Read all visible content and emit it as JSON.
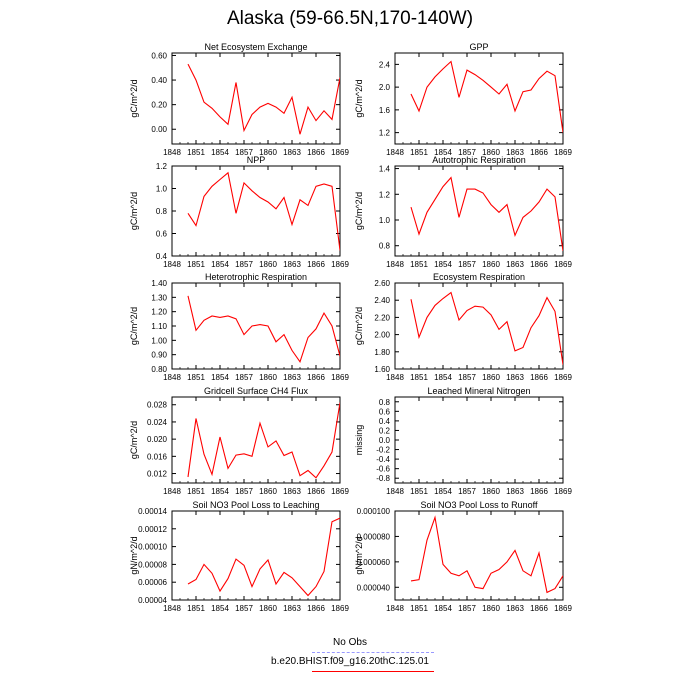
{
  "page": {
    "title": "Alaska (59-66.5N,170-140W)"
  },
  "legend": [
    {
      "label": "No Obs",
      "color": "#9999ff",
      "dashed": true
    },
    {
      "label": "b.e20.BHIST.f09_g16.20thC.125.01",
      "color": "#ff0000",
      "dashed": false
    }
  ],
  "colors": {
    "series": "#ff0000",
    "axis": "#000000"
  },
  "chart_data": [
    {
      "type": "line",
      "title": "Net Ecosystem Exchange",
      "ylabel": "gC/m^2/d",
      "xlim": [
        1848,
        1869
      ],
      "ylim": [
        -0.12,
        0.62
      ],
      "yticks": [
        "0.00",
        "0.20",
        "0.40",
        "0.60"
      ],
      "ytick_values": [
        0,
        0.2,
        0.4,
        0.6
      ],
      "xticks": [
        "1848",
        "1851",
        "1854",
        "1857",
        "1860",
        "1863",
        "1866",
        "1869"
      ],
      "x": [
        1850,
        1851,
        1852,
        1853,
        1854,
        1855,
        1856,
        1857,
        1858,
        1859,
        1860,
        1861,
        1862,
        1863,
        1864,
        1865,
        1866,
        1867,
        1868,
        1869
      ],
      "series": [
        {
          "values": [
            0.53,
            0.4,
            0.22,
            0.17,
            0.1,
            0.04,
            0.38,
            -0.01,
            0.12,
            0.18,
            0.21,
            0.18,
            0.13,
            0.26,
            -0.04,
            0.18,
            0.07,
            0.15,
            0.08,
            0.42
          ]
        }
      ]
    },
    {
      "type": "line",
      "title": "GPP",
      "ylabel": "gC/m^2/d",
      "xlim": [
        1848,
        1869
      ],
      "ylim": [
        1.0,
        2.6
      ],
      "yticks": [
        "1.2",
        "1.6",
        "2.0",
        "2.4"
      ],
      "ytick_values": [
        1.2,
        1.6,
        2.0,
        2.4
      ],
      "xticks": [
        "1848",
        "1851",
        "1854",
        "1857",
        "1860",
        "1863",
        "1866",
        "1869"
      ],
      "x": [
        1850,
        1851,
        1852,
        1853,
        1854,
        1855,
        1856,
        1857,
        1858,
        1859,
        1860,
        1861,
        1862,
        1863,
        1864,
        1865,
        1866,
        1867,
        1868,
        1869
      ],
      "series": [
        {
          "values": [
            1.88,
            1.58,
            2.0,
            2.18,
            2.32,
            2.45,
            1.82,
            2.3,
            2.22,
            2.12,
            2.0,
            1.88,
            2.05,
            1.58,
            1.92,
            1.95,
            2.15,
            2.28,
            2.2,
            1.2
          ]
        }
      ]
    },
    {
      "type": "line",
      "title": "NPP",
      "ylabel": "gC/m^2/d",
      "xlim": [
        1848,
        1869
      ],
      "ylim": [
        0.4,
        1.2
      ],
      "yticks": [
        "0.4",
        "0.6",
        "0.8",
        "1.0",
        "1.2"
      ],
      "ytick_values": [
        0.4,
        0.6,
        0.8,
        1.0,
        1.2
      ],
      "xticks": [
        "1848",
        "1851",
        "1854",
        "1857",
        "1860",
        "1863",
        "1866",
        "1869"
      ],
      "x": [
        1850,
        1851,
        1852,
        1853,
        1854,
        1855,
        1856,
        1857,
        1858,
        1859,
        1860,
        1861,
        1862,
        1863,
        1864,
        1865,
        1866,
        1867,
        1868,
        1869
      ],
      "series": [
        {
          "values": [
            0.78,
            0.67,
            0.93,
            1.02,
            1.08,
            1.14,
            0.78,
            1.05,
            0.98,
            0.92,
            0.88,
            0.82,
            0.92,
            0.68,
            0.9,
            0.85,
            1.02,
            1.04,
            1.02,
            0.45
          ]
        }
      ]
    },
    {
      "type": "line",
      "title": "Autotrophic Respiration",
      "ylabel": "gC/m^2/d",
      "xlim": [
        1848,
        1869
      ],
      "ylim": [
        0.72,
        1.42
      ],
      "yticks": [
        "0.8",
        "1.0",
        "1.2",
        "1.4"
      ],
      "ytick_values": [
        0.8,
        1.0,
        1.2,
        1.4
      ],
      "xticks": [
        "1848",
        "1851",
        "1854",
        "1857",
        "1860",
        "1863",
        "1866",
        "1869"
      ],
      "x": [
        1850,
        1851,
        1852,
        1853,
        1854,
        1855,
        1856,
        1857,
        1858,
        1859,
        1860,
        1861,
        1862,
        1863,
        1864,
        1865,
        1866,
        1867,
        1868,
        1869
      ],
      "series": [
        {
          "values": [
            1.1,
            0.89,
            1.06,
            1.16,
            1.26,
            1.33,
            1.02,
            1.24,
            1.24,
            1.21,
            1.12,
            1.06,
            1.12,
            0.88,
            1.02,
            1.07,
            1.14,
            1.24,
            1.18,
            0.76
          ]
        }
      ]
    },
    {
      "type": "line",
      "title": "Heterotrophic Respiration",
      "ylabel": "gC/m^2/d",
      "xlim": [
        1848,
        1869
      ],
      "ylim": [
        0.8,
        1.4
      ],
      "yticks": [
        "0.80",
        "0.90",
        "1.00",
        "1.10",
        "1.20",
        "1.30",
        "1.40"
      ],
      "ytick_values": [
        0.8,
        0.9,
        1.0,
        1.1,
        1.2,
        1.3,
        1.4
      ],
      "xticks": [
        "1848",
        "1851",
        "1854",
        "1857",
        "1860",
        "1863",
        "1866",
        "1869"
      ],
      "x": [
        1850,
        1851,
        1852,
        1853,
        1854,
        1855,
        1856,
        1857,
        1858,
        1859,
        1860,
        1861,
        1862,
        1863,
        1864,
        1865,
        1866,
        1867,
        1868,
        1869
      ],
      "series": [
        {
          "values": [
            1.31,
            1.07,
            1.14,
            1.17,
            1.16,
            1.17,
            1.15,
            1.04,
            1.1,
            1.11,
            1.1,
            0.99,
            1.04,
            0.93,
            0.85,
            1.02,
            1.08,
            1.19,
            1.1,
            0.89
          ]
        }
      ]
    },
    {
      "type": "line",
      "title": "Ecosystem Respiration",
      "ylabel": "gC/m^2/d",
      "xlim": [
        1848,
        1869
      ],
      "ylim": [
        1.6,
        2.6
      ],
      "yticks": [
        "1.60",
        "1.80",
        "2.00",
        "2.20",
        "2.40",
        "2.60"
      ],
      "ytick_values": [
        1.6,
        1.8,
        2.0,
        2.2,
        2.4,
        2.6
      ],
      "xticks": [
        "1848",
        "1851",
        "1854",
        "1857",
        "1860",
        "1863",
        "1866",
        "1869"
      ],
      "x": [
        1850,
        1851,
        1852,
        1853,
        1854,
        1855,
        1856,
        1857,
        1858,
        1859,
        1860,
        1861,
        1862,
        1863,
        1864,
        1865,
        1866,
        1867,
        1868,
        1869
      ],
      "series": [
        {
          "values": [
            2.41,
            1.97,
            2.2,
            2.34,
            2.42,
            2.49,
            2.17,
            2.28,
            2.33,
            2.32,
            2.23,
            2.06,
            2.15,
            1.81,
            1.85,
            2.08,
            2.22,
            2.43,
            2.27,
            1.65
          ]
        }
      ]
    },
    {
      "type": "line",
      "title": "Gridcell Surface CH4 Flux",
      "ylabel": "gC/m^2/d",
      "xlim": [
        1848,
        1869
      ],
      "ylim": [
        0.0098,
        0.0298
      ],
      "yticks": [
        "0.012",
        "0.016",
        "0.020",
        "0.024",
        "0.028"
      ],
      "ytick_values": [
        0.012,
        0.016,
        0.02,
        0.024,
        0.028
      ],
      "xticks": [
        "1848",
        "1851",
        "1854",
        "1857",
        "1860",
        "1863",
        "1866",
        "1869"
      ],
      "x": [
        1850,
        1851,
        1852,
        1853,
        1854,
        1855,
        1856,
        1857,
        1858,
        1859,
        1860,
        1861,
        1862,
        1863,
        1864,
        1865,
        1866,
        1867,
        1868,
        1869
      ],
      "series": [
        {
          "values": [
            0.0112,
            0.0248,
            0.0165,
            0.0118,
            0.0205,
            0.0132,
            0.0163,
            0.0166,
            0.016,
            0.0237,
            0.0182,
            0.0196,
            0.0162,
            0.017,
            0.0115,
            0.0127,
            0.011,
            0.0138,
            0.017,
            0.0285
          ]
        }
      ]
    },
    {
      "type": "line",
      "title": "Leached Mineral Nitrogen",
      "ylabel": "missing",
      "xlim": [
        1848,
        1869
      ],
      "ylim": [
        -0.9,
        0.9
      ],
      "yticks": [
        "-0.8",
        "-0.4",
        "0.0",
        "0.4",
        "0.8"
      ],
      "ytick_values": [
        -0.8,
        -0.4,
        0.0,
        0.4,
        0.8
      ],
      "extra_yticks": [
        "-0.6",
        "-0.2",
        "0.2",
        "0.6"
      ],
      "extra_ytick_values": [
        -0.6,
        -0.2,
        0.2,
        0.6
      ],
      "xticks": [
        "1848",
        "1851",
        "1854",
        "1857",
        "1860",
        "1863",
        "1866",
        "1869"
      ],
      "x": [],
      "series": []
    },
    {
      "type": "line",
      "title": "Soil NO3 Pool Loss to Leaching",
      "ylabel": "gN/m^2/d",
      "xlim": [
        1848,
        1869
      ],
      "ylim": [
        4e-05,
        0.00014
      ],
      "yticks": [
        "0.00004",
        "0.00006",
        "0.00008",
        "0.00010",
        "0.00012",
        "0.00014"
      ],
      "ytick_values": [
        4e-05,
        6e-05,
        8e-05,
        0.0001,
        0.00012,
        0.00014
      ],
      "xticks": [
        "1848",
        "1851",
        "1854",
        "1857",
        "1860",
        "1863",
        "1866",
        "1869"
      ],
      "x": [
        1850,
        1851,
        1852,
        1853,
        1854,
        1855,
        1856,
        1857,
        1858,
        1859,
        1860,
        1861,
        1862,
        1863,
        1864,
        1865,
        1866,
        1867,
        1868,
        1869
      ],
      "series": [
        {
          "values": [
            5.8e-05,
            6.3e-05,
            8e-05,
            7e-05,
            5e-05,
            6.4e-05,
            8.6e-05,
            7.9e-05,
            5.5e-05,
            7.5e-05,
            8.5e-05,
            5.8e-05,
            7.1e-05,
            6.5e-05,
            5.5e-05,
            4.5e-05,
            5.5e-05,
            7.2e-05,
            0.000128,
            0.000132
          ]
        }
      ]
    },
    {
      "type": "line",
      "title": "Soil NO3 Pool Loss to Runoff",
      "ylabel": "gN/m^2/d",
      "xlim": [
        1848,
        1869
      ],
      "ylim": [
        3e-05,
        0.0001
      ],
      "yticks": [
        "0.000040",
        "0.000060",
        "0.000080",
        "0.000100"
      ],
      "ytick_values": [
        4e-05,
        6e-05,
        8e-05,
        0.0001
      ],
      "xticks": [
        "1848",
        "1851",
        "1854",
        "1857",
        "1860",
        "1863",
        "1866",
        "1869"
      ],
      "x": [
        1850,
        1851,
        1852,
        1853,
        1854,
        1855,
        1856,
        1857,
        1858,
        1859,
        1860,
        1861,
        1862,
        1863,
        1864,
        1865,
        1866,
        1867,
        1868,
        1869
      ],
      "series": [
        {
          "values": [
            4.5e-05,
            4.6e-05,
            7.7e-05,
            9.5e-05,
            5.8e-05,
            5.1e-05,
            4.9e-05,
            5.3e-05,
            4e-05,
            3.9e-05,
            5.1e-05,
            5.4e-05,
            6e-05,
            6.9e-05,
            5.3e-05,
            4.9e-05,
            6.7e-05,
            3.6e-05,
            3.9e-05,
            4.9e-05
          ]
        }
      ]
    }
  ]
}
